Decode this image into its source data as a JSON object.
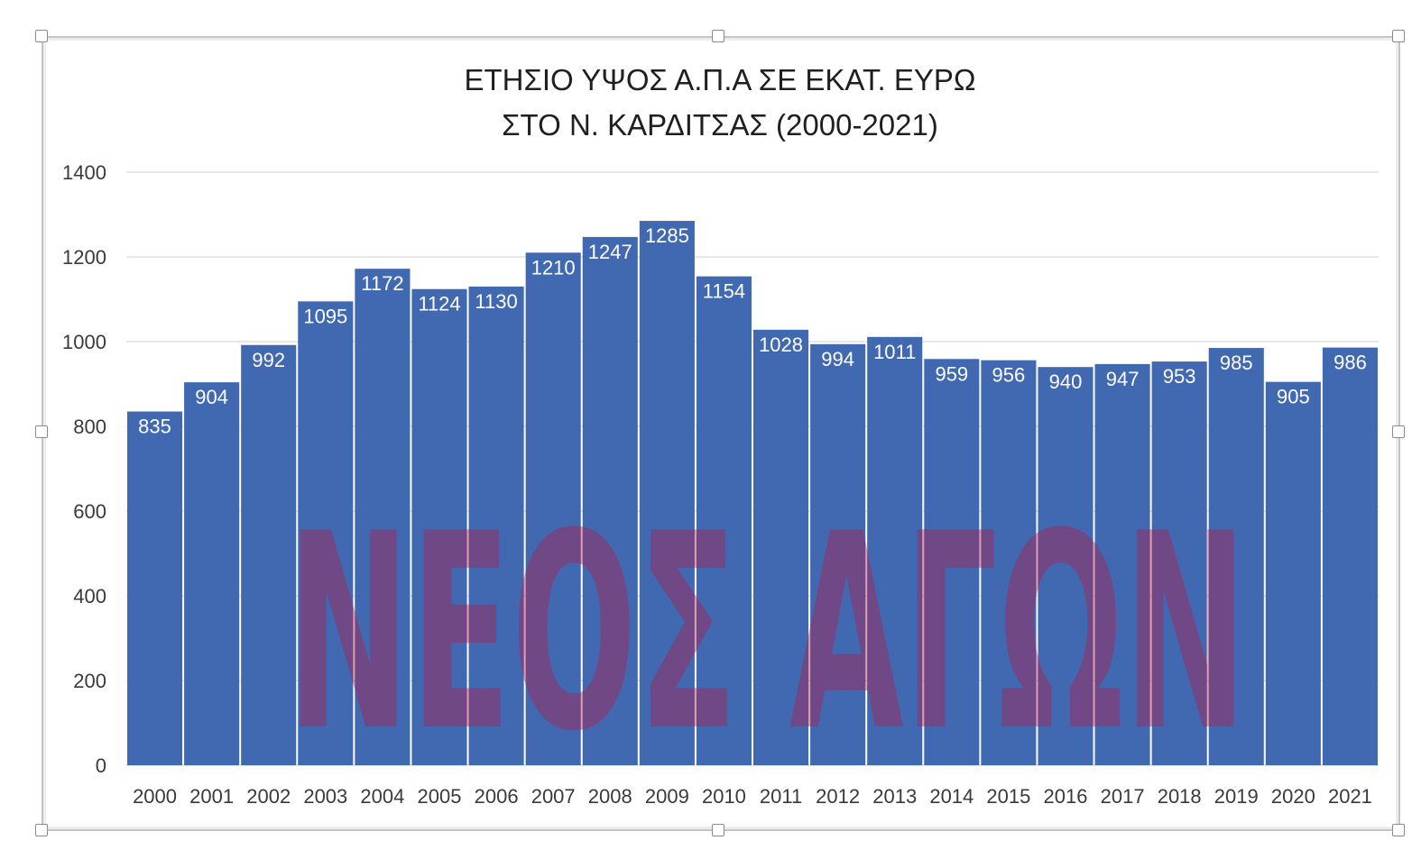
{
  "chart_data": {
    "type": "bar",
    "title_line1": "ΕΤΗΣΙΟ ΥΨΟΣ Α.Π.Α ΣΕ ΕΚΑΤ. ΕΥΡΩ",
    "title_line2": "ΣΤΟ Ν. ΚΑΡΔΙΤΣΑΣ (2000-2021)",
    "categories": [
      "2000",
      "2001",
      "2002",
      "2003",
      "2004",
      "2005",
      "2006",
      "2007",
      "2008",
      "2009",
      "2010",
      "2011",
      "2012",
      "2013",
      "2014",
      "2015",
      "2016",
      "2017",
      "2018",
      "2019",
      "2020",
      "2021"
    ],
    "values": [
      835,
      904,
      992,
      1095,
      1172,
      1124,
      1130,
      1210,
      1247,
      1285,
      1154,
      1028,
      994,
      1011,
      959,
      956,
      940,
      947,
      953,
      985,
      905,
      986
    ],
    "y_ticks": [
      0,
      200,
      400,
      600,
      800,
      1000,
      1200,
      1400
    ],
    "ylim": [
      0,
      1400
    ],
    "grid": true,
    "legend": "none",
    "bar_color": "#4169b2",
    "gridline_color": "#d9d9d9"
  },
  "watermark": {
    "text": "ΝΕΟΣ ΑΓΩΝ",
    "color": "#b31a4a"
  }
}
